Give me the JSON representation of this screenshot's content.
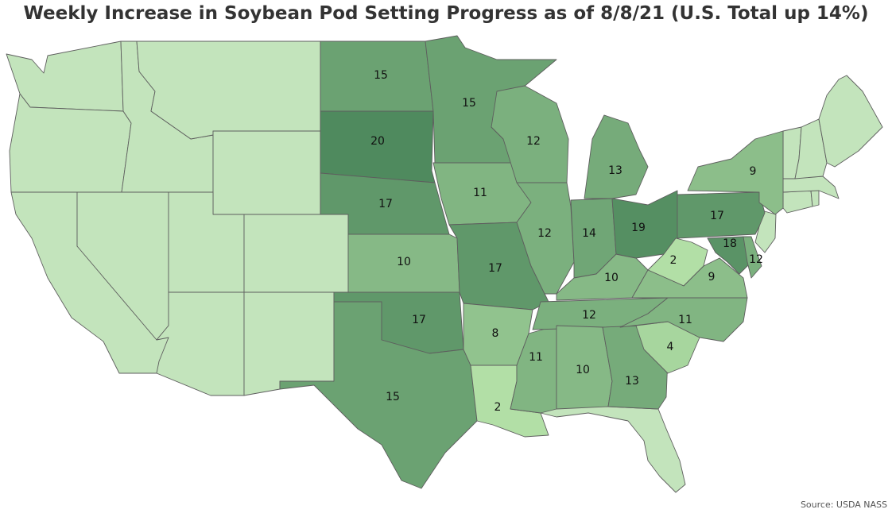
{
  "title": "Weekly Increase in Soybean Pod Setting Progress as of 8/8/21 (U.S. Total up 14%)",
  "source": "Source: USDA NASS",
  "colors": {
    "no_data": "#c3e4bc",
    "low": "#b2dfa6",
    "high": "#4f8a5e",
    "border": "#5e5e5e"
  },
  "states": [
    {
      "id": "ND",
      "value": 15
    },
    {
      "id": "SD",
      "value": 20
    },
    {
      "id": "NE",
      "value": 17
    },
    {
      "id": "KS",
      "value": 10
    },
    {
      "id": "OK",
      "value": 17
    },
    {
      "id": "TX",
      "value": 15
    },
    {
      "id": "MN",
      "value": 15
    },
    {
      "id": "IA",
      "value": 11
    },
    {
      "id": "MO",
      "value": 17
    },
    {
      "id": "AR",
      "value": 8
    },
    {
      "id": "LA",
      "value": 2
    },
    {
      "id": "WI",
      "value": 12
    },
    {
      "id": "IL",
      "value": 12
    },
    {
      "id": "MS",
      "value": 11
    },
    {
      "id": "MI",
      "value": 13
    },
    {
      "id": "IN",
      "value": 14
    },
    {
      "id": "KY",
      "value": 10
    },
    {
      "id": "TN",
      "value": 12
    },
    {
      "id": "AL",
      "value": 10
    },
    {
      "id": "OH",
      "value": 19
    },
    {
      "id": "WV",
      "value": 2
    },
    {
      "id": "GA",
      "value": 13
    },
    {
      "id": "SC",
      "value": 4
    },
    {
      "id": "NC",
      "value": 11
    },
    {
      "id": "VA",
      "value": 9
    },
    {
      "id": "PA",
      "value": 17
    },
    {
      "id": "NY",
      "value": 9
    },
    {
      "id": "MD",
      "value": 18
    },
    {
      "id": "DE",
      "value": 12
    }
  ]
}
